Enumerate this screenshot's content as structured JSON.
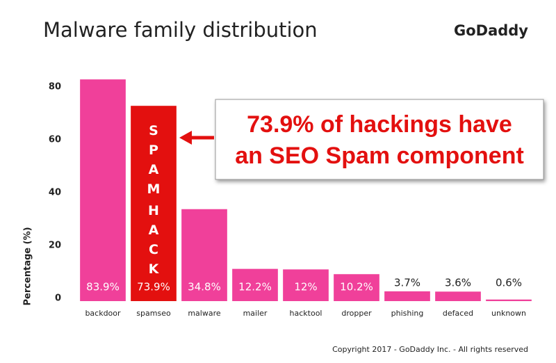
{
  "chart_data": {
    "type": "bar",
    "title": "Malware family distribution",
    "logo": "GoDaddy",
    "ylabel": "Percentage (%)",
    "categories": [
      "backdoor",
      "spamseo",
      "malware",
      "mailer",
      "hacktool",
      "dropper",
      "phishing",
      "defaced",
      "unknown"
    ],
    "values": [
      83.9,
      73.9,
      34.8,
      12.2,
      12,
      10.2,
      3.7,
      3.6,
      0.6
    ],
    "value_labels": [
      "83.9%",
      "73.9%",
      "34.8%",
      "12.2%",
      "12%",
      "10.2%",
      "3.7%",
      "3.6%",
      "0.6%"
    ],
    "color": "#f0409a",
    "colors": [
      "#f0409a",
      "#e3100f",
      "#f0409a",
      "#f0409a",
      "#f0409a",
      "#f0409a",
      "#f0409a",
      "#f0409a",
      "#f0409a"
    ],
    "ylim": [
      0,
      85
    ],
    "yticks": [
      0,
      20,
      40,
      60,
      80
    ],
    "grid": false,
    "bar_annotation": [
      "SPAM",
      "HACK"
    ],
    "callout": [
      "73.9% of hackings have",
      "an SEO Spam component"
    ],
    "footer": "Copyright 2017 - GoDaddy Inc. - All rights reserved"
  }
}
